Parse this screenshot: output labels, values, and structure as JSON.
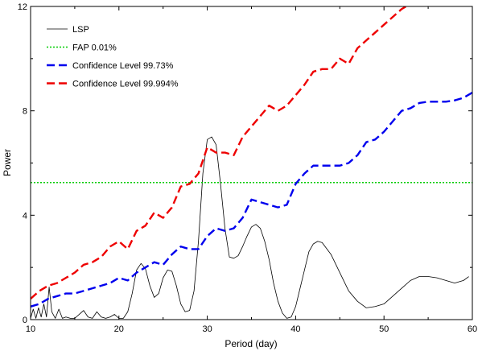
{
  "chart_data": {
    "type": "line",
    "xlabel": "Period (day)",
    "ylabel": "Power",
    "xlim": [
      10,
      60
    ],
    "ylim": [
      0,
      12
    ],
    "x_ticks": [
      10,
      20,
      30,
      40,
      50,
      60
    ],
    "y_ticks": [
      0,
      4,
      8,
      12
    ],
    "grid": false,
    "legend_position": "top-left",
    "series": [
      {
        "name": "LSP",
        "color": "#000000",
        "style": "solid",
        "x": [
          10.0,
          10.3,
          10.6,
          10.9,
          11.2,
          11.5,
          11.8,
          12.1,
          12.4,
          12.8,
          13.2,
          13.6,
          14.0,
          14.5,
          15.0,
          15.5,
          16.0,
          16.5,
          17.0,
          17.5,
          18.0,
          18.5,
          19.0,
          19.5,
          20.0,
          20.5,
          21.0,
          21.5,
          22.0,
          22.5,
          23.0,
          23.5,
          24.0,
          24.5,
          25.0,
          25.5,
          26.0,
          26.5,
          27.0,
          27.5,
          28.0,
          28.5,
          29.0,
          29.5,
          30.0,
          30.5,
          31.0,
          31.5,
          32.0,
          32.5,
          33.0,
          33.5,
          34.0,
          34.5,
          35.0,
          35.5,
          36.0,
          36.5,
          37.0,
          37.5,
          38.0,
          38.5,
          39.0,
          39.5,
          40.0,
          40.5,
          41.0,
          41.5,
          42.0,
          42.5,
          43.0,
          44.0,
          45.0,
          46.0,
          47.0,
          48.0,
          49.0,
          50.0,
          51.0,
          52.0,
          53.0,
          54.0,
          55.0,
          56.0,
          57.0,
          58.0,
          59.0,
          59.6
        ],
        "y": [
          0.05,
          0.4,
          0.05,
          0.45,
          0.1,
          0.6,
          0.1,
          1.25,
          0.3,
          0.05,
          0.4,
          0.05,
          0.1,
          0.05,
          0.05,
          0.2,
          0.35,
          0.1,
          0.05,
          0.3,
          0.1,
          0.05,
          0.1,
          0.2,
          0.05,
          0.05,
          0.3,
          1.0,
          1.9,
          2.15,
          1.95,
          1.3,
          0.85,
          1.0,
          1.6,
          1.9,
          1.85,
          1.3,
          0.6,
          0.3,
          0.35,
          1.1,
          3.0,
          5.6,
          6.9,
          7.0,
          6.7,
          5.2,
          3.5,
          2.4,
          2.35,
          2.45,
          2.8,
          3.2,
          3.55,
          3.65,
          3.5,
          3.0,
          2.3,
          1.4,
          0.7,
          0.25,
          0.05,
          0.1,
          0.5,
          1.2,
          1.9,
          2.6,
          2.9,
          3.0,
          2.95,
          2.5,
          1.8,
          1.1,
          0.7,
          0.45,
          0.5,
          0.6,
          0.9,
          1.2,
          1.5,
          1.65,
          1.65,
          1.6,
          1.5,
          1.4,
          1.5,
          1.65
        ]
      },
      {
        "name": "FAP 0.01%",
        "color": "#00cc00",
        "style": "dotted",
        "x": [
          10,
          60
        ],
        "y": [
          5.25,
          5.25
        ]
      },
      {
        "name": "Confidence Level 99.73%",
        "color": "#0000ee",
        "style": "dashed",
        "x": [
          10,
          11,
          12,
          13,
          14,
          15,
          16,
          17,
          18,
          19,
          20,
          21,
          22,
          23,
          24,
          25,
          26,
          27,
          28,
          29,
          30,
          31,
          32,
          33,
          34,
          35,
          36,
          37,
          38,
          39,
          40,
          41,
          42,
          43,
          44,
          45,
          46,
          47,
          48,
          49,
          50,
          51,
          52,
          53,
          54,
          55,
          56,
          57,
          58,
          59,
          60
        ],
        "y": [
          0.5,
          0.6,
          0.8,
          0.9,
          1.0,
          1.0,
          1.1,
          1.2,
          1.3,
          1.4,
          1.6,
          1.5,
          1.8,
          2.0,
          2.2,
          2.1,
          2.5,
          2.8,
          2.7,
          2.7,
          3.2,
          3.5,
          3.4,
          3.5,
          3.9,
          4.6,
          4.5,
          4.4,
          4.3,
          4.4,
          5.2,
          5.6,
          5.9,
          5.9,
          5.9,
          5.9,
          6.0,
          6.3,
          6.8,
          6.9,
          7.2,
          7.6,
          8.0,
          8.1,
          8.3,
          8.35,
          8.35,
          8.35,
          8.4,
          8.5,
          8.7
        ]
      },
      {
        "name": "Confidence Level 99.994%",
        "color": "#ee0000",
        "style": "dashed",
        "x": [
          10,
          11,
          12,
          13,
          14,
          15,
          16,
          17,
          18,
          19,
          20,
          21,
          22,
          23,
          24,
          25,
          26,
          27,
          28,
          29,
          30,
          31,
          32,
          33,
          34,
          35,
          36,
          37,
          38,
          39,
          40,
          41,
          42,
          43,
          44,
          45,
          46,
          47,
          48,
          49,
          50,
          51,
          52,
          53,
          54,
          55,
          56,
          57,
          58,
          59,
          60
        ],
        "y": [
          0.8,
          1.1,
          1.3,
          1.4,
          1.6,
          1.8,
          2.1,
          2.2,
          2.4,
          2.8,
          3.0,
          2.7,
          3.4,
          3.6,
          4.1,
          3.9,
          4.3,
          5.1,
          5.2,
          5.6,
          6.6,
          6.4,
          6.4,
          6.3,
          7.0,
          7.4,
          7.8,
          8.2,
          8.0,
          8.2,
          8.6,
          9.0,
          9.5,
          9.6,
          9.6,
          10.0,
          9.8,
          10.4,
          10.7,
          11.0,
          11.3,
          11.6,
          11.9,
          12.1,
          12.4,
          12.6,
          12.9,
          13.1,
          13.3,
          13.5,
          13.7
        ]
      }
    ]
  }
}
